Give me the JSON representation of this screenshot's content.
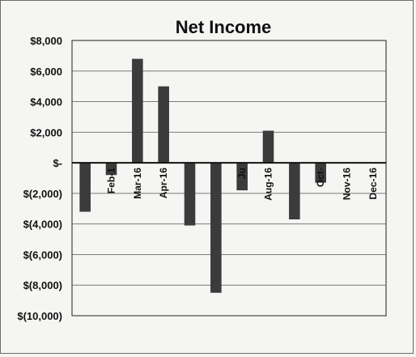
{
  "chart_data": {
    "type": "bar",
    "title": "Net Income",
    "xlabel": "",
    "ylabel": "",
    "categories": [
      "",
      "Feb-1",
      "Mar-16",
      "Apr-16",
      "",
      "",
      "Ju",
      "Aug-16",
      "",
      "Oct-",
      "Nov-16",
      "Dec-16"
    ],
    "values": [
      -3200,
      -800,
      6800,
      5000,
      -4100,
      -8500,
      -1800,
      2100,
      -3700,
      -1300,
      0,
      0
    ],
    "ylim": [
      -10000,
      8000
    ],
    "y_ticks": [
      8000,
      6000,
      4000,
      2000,
      0,
      -2000,
      -4000,
      -6000,
      -8000,
      -10000
    ],
    "y_tick_labels": [
      "$8,000",
      "$6,000",
      "$4,000",
      "$2,000",
      "$-",
      "$(2,000)",
      "$(4,000)",
      "$(6,000)",
      "$(8,000)",
      "$(10,000)"
    ],
    "grid": true,
    "legend": "none",
    "colors": {
      "bar": "#3b3b3b",
      "background": "#f5f5f3",
      "grid": "#7a7a7a"
    }
  }
}
